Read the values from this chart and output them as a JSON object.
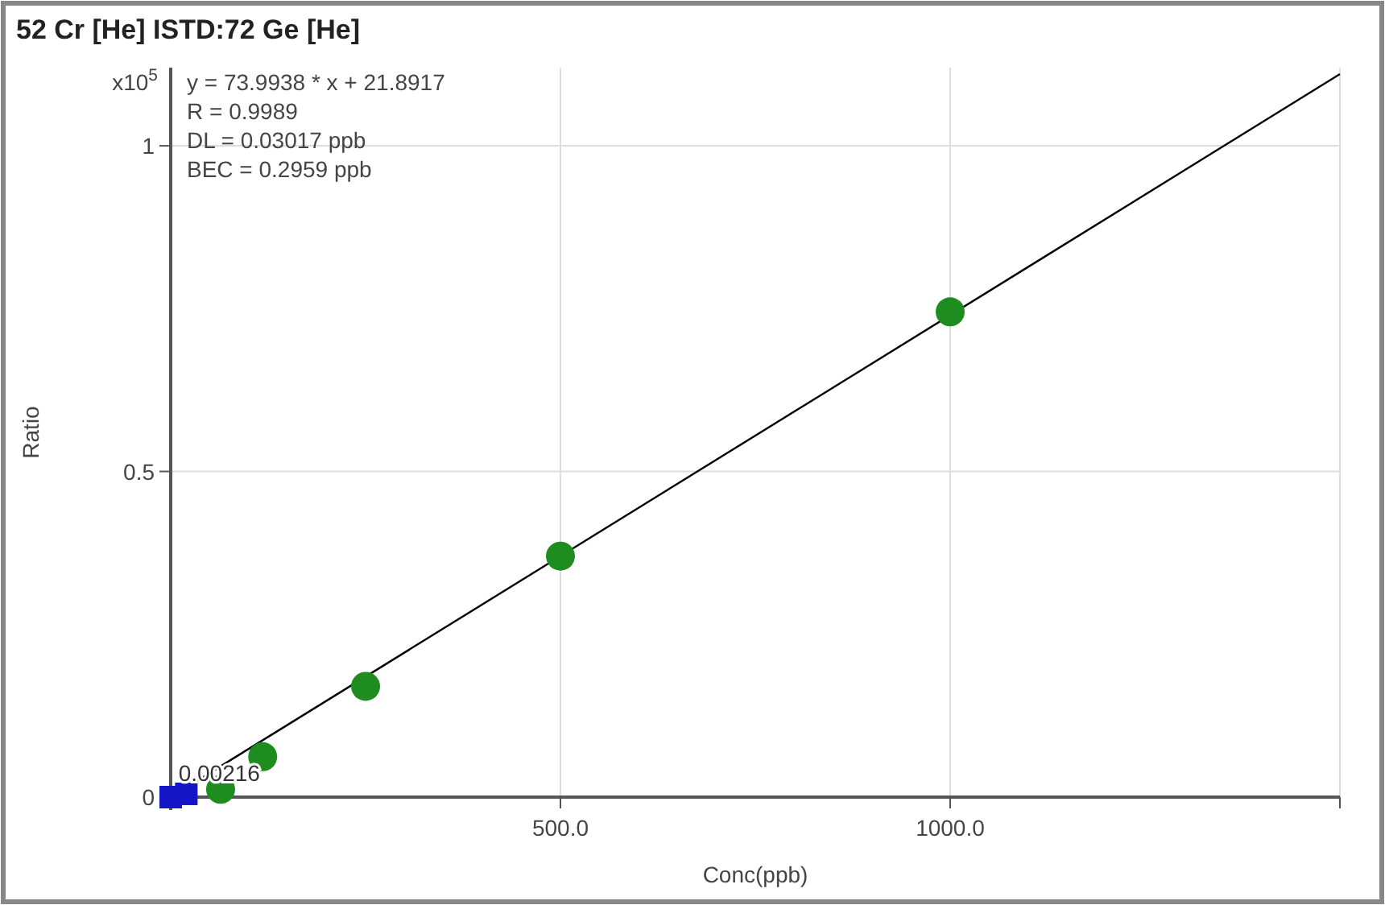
{
  "chart_data": {
    "type": "scatter",
    "title": "52 Cr [He] ISTD:72 Ge [He]",
    "xlabel": "Conc(ppb)",
    "ylabel": "Ratio",
    "xlim": [
      0,
      1500
    ],
    "ylim": [
      0,
      1.12
    ],
    "xticks": [
      {
        "value": 0,
        "label": null
      },
      {
        "value": 500,
        "label": "500.0"
      },
      {
        "value": 1000,
        "label": "1000.0"
      },
      {
        "value": 1500,
        "label": null
      }
    ],
    "yticks": [
      0,
      0.5,
      1
    ],
    "grid": true,
    "series": [
      {
        "type": "line",
        "color": "#000000",
        "x": [
          0,
          1500
        ],
        "values": [
          0,
          1.11
        ],
        "marker": "none"
      },
      {
        "color": "#1515c8",
        "x": [
          0,
          20
        ],
        "values": [
          0,
          0.005
        ],
        "marker": "square"
      },
      {
        "color": "#1e8c1e",
        "x": [
          64,
          118,
          250,
          500,
          1000
        ],
        "values": [
          0.012,
          0.062,
          0.17,
          0.37,
          0.745
        ],
        "marker": "circle"
      }
    ],
    "annotations": [
      "x10$^{5}$",
      "y = 73.9938 * x  + 21.8917",
      "R =  0.9989",
      "DL = 0.03017 ppb",
      "BEC = 0.2959 ppb",
      {
        "text": "0.00216",
        "x": 10,
        "y": 0.025
      }
    ]
  }
}
